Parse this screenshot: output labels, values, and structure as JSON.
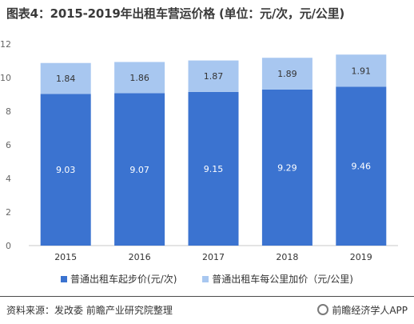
{
  "title": "图表4：2015-2019年出租车营运价格 (单位：元/次，元/公里)",
  "colors": {
    "start_price": "#3b73d0",
    "per_km_price": "#a8c7f0",
    "axis_text": "#666666",
    "grid": "#d0d0d0"
  },
  "chart_data": {
    "type": "bar",
    "stacked": true,
    "categories": [
      "2015",
      "2016",
      "2017",
      "2018",
      "2019"
    ],
    "series": [
      {
        "name": "普通出租车起步价(元/次)",
        "values": [
          9.03,
          9.07,
          9.15,
          9.29,
          9.46
        ]
      },
      {
        "name": "普通出租车每公里加价（元/公里)",
        "values": [
          1.84,
          1.86,
          1.87,
          1.89,
          1.91
        ]
      }
    ],
    "value_labels": [
      [
        "9.03",
        "9.07",
        "9.15",
        "9.29",
        "9.46"
      ],
      [
        "1.84",
        "1.86",
        "1.87",
        "1.89",
        "1.91"
      ]
    ],
    "yticks": [
      "0",
      "2",
      "4",
      "6",
      "8",
      "10",
      "12"
    ],
    "ylim": [
      0,
      12
    ],
    "grid": false,
    "legend_position": "bottom"
  },
  "legend": {
    "item1": "普通出租车起步价(元/次)",
    "item2": "普通出租车每公里加价（元/公里)"
  },
  "footer": {
    "source": "资料来源：发改委 前瞻产业研究院整理",
    "brand": "前瞻经济学人APP"
  }
}
